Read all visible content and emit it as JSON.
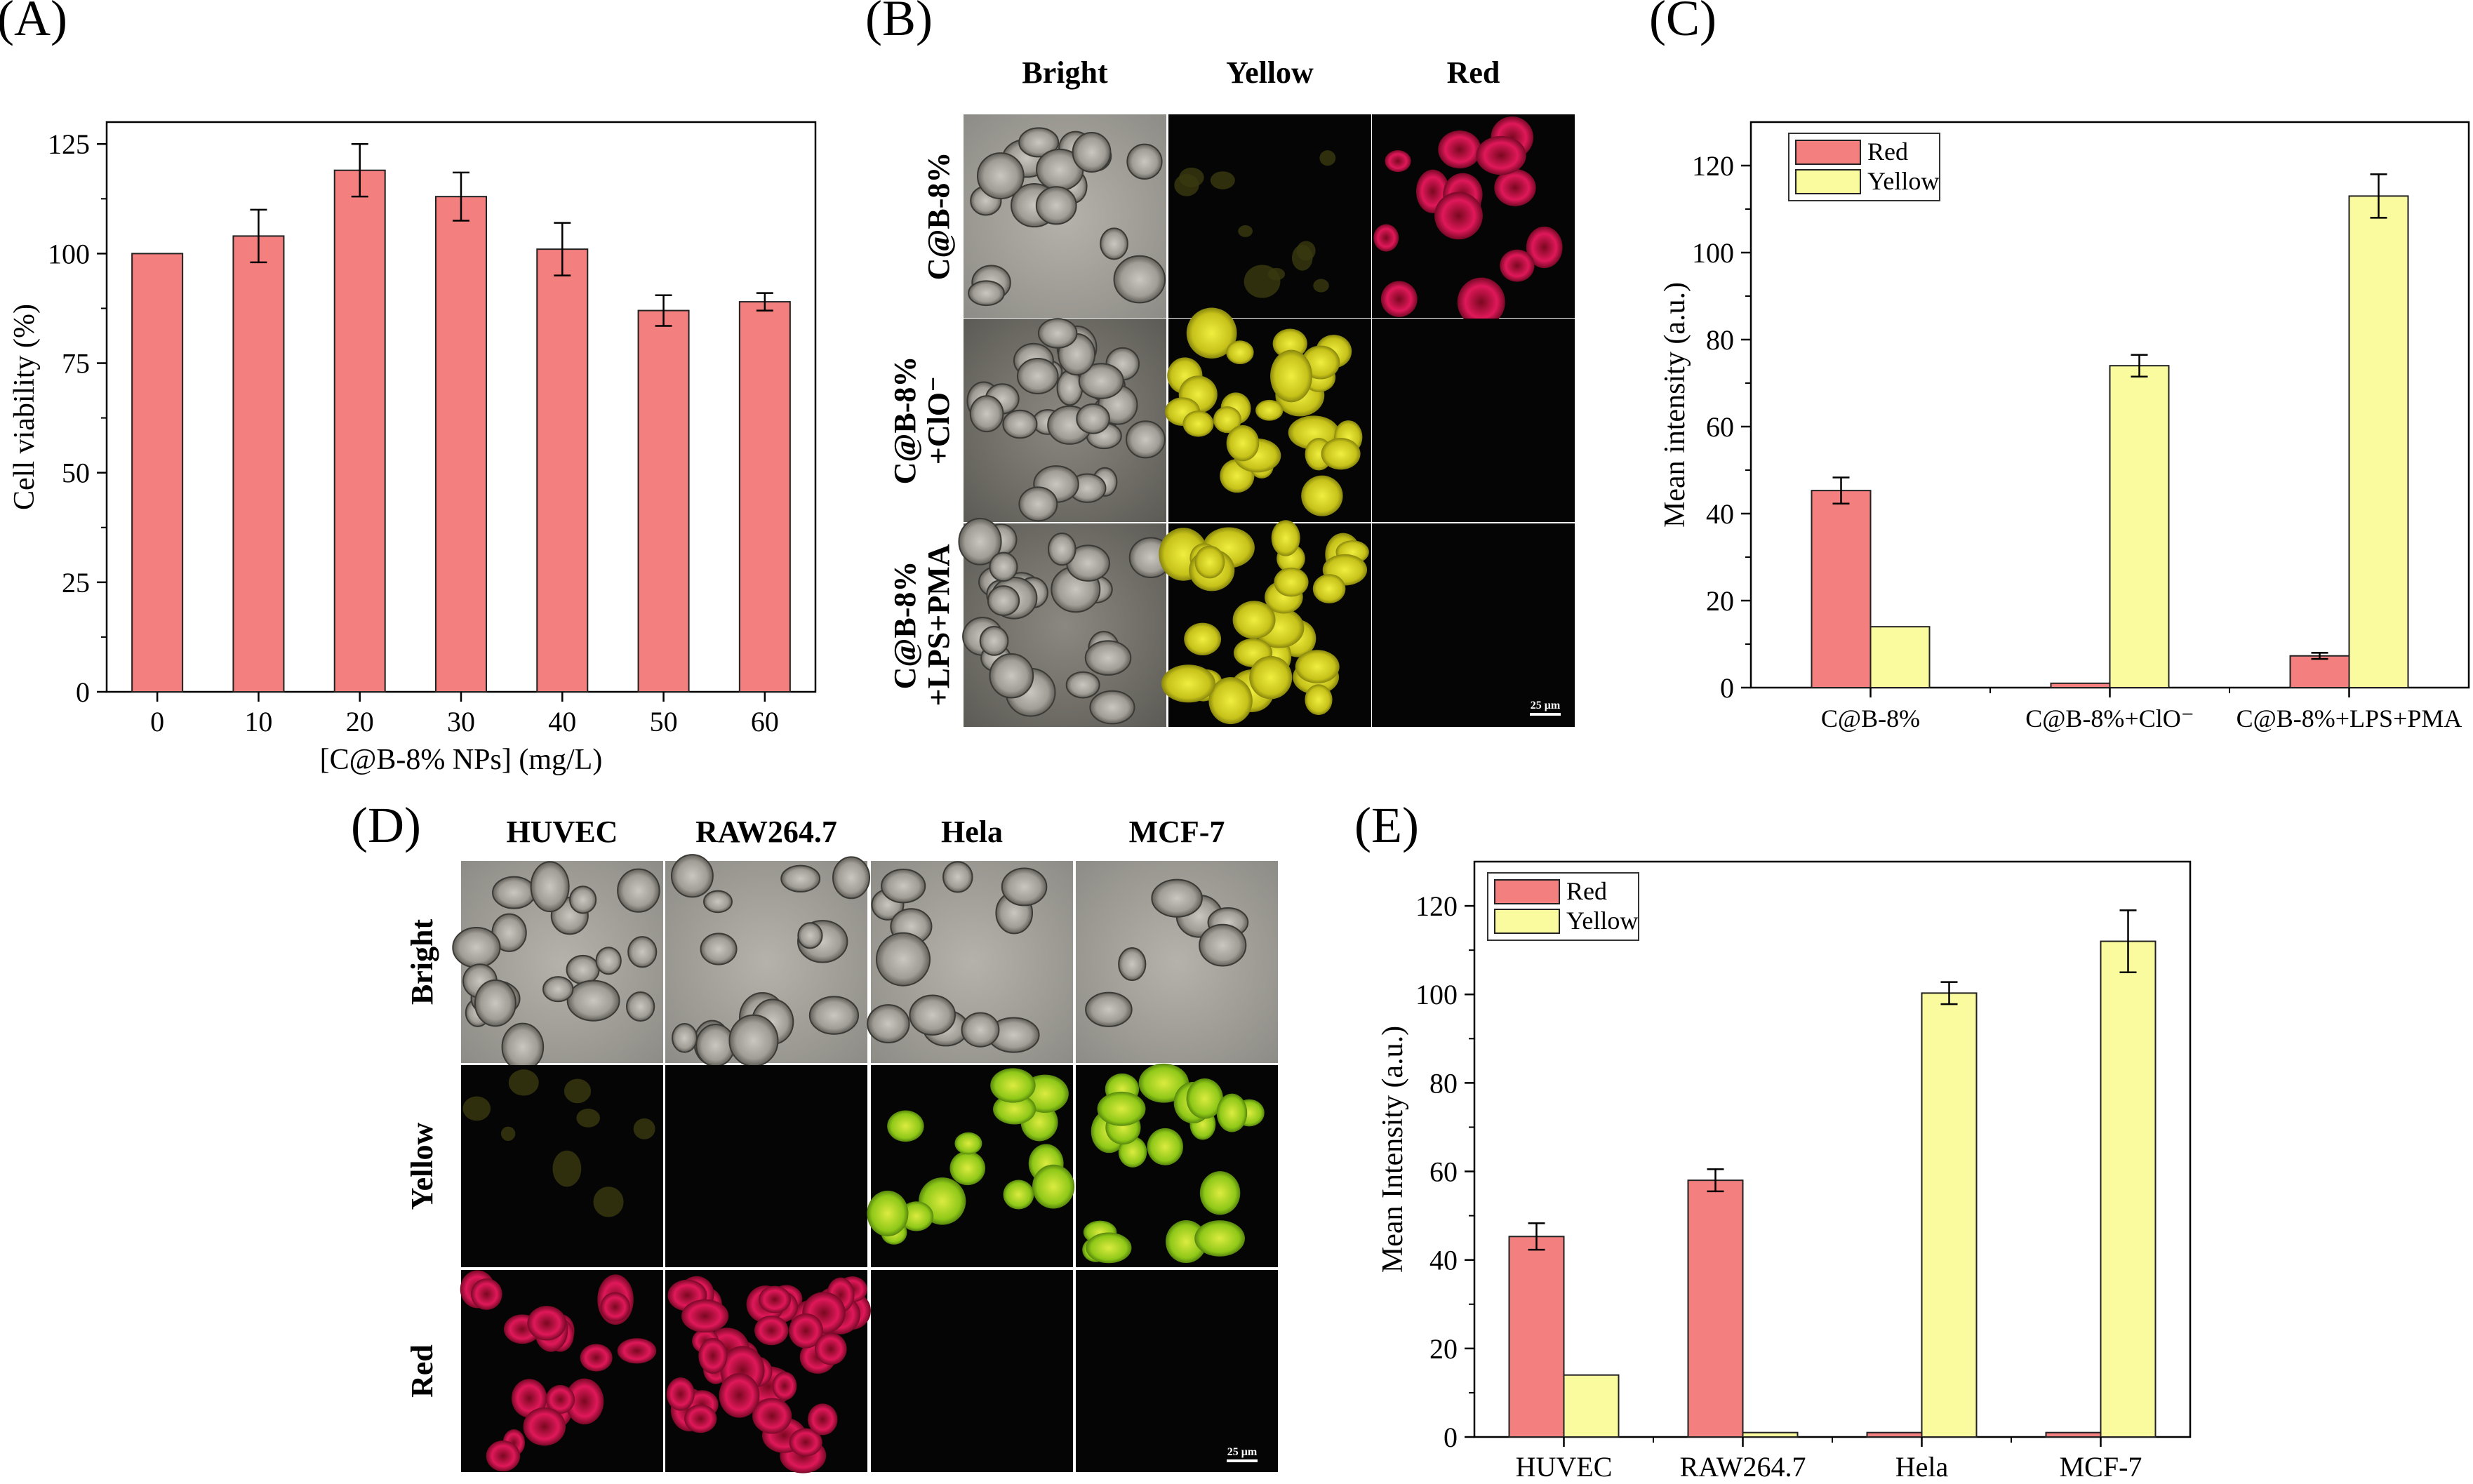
{
  "panels": {
    "A": "(A)",
    "B": "(B)",
    "C": "(C)",
    "D": "(D)",
    "E": "(E)"
  },
  "colors": {
    "red_bar": "#f47f7f",
    "yellow_bar": "#fafa9e",
    "bar_edge": "#222222"
  },
  "micro_B": {
    "col_headers": [
      "Bright",
      "Yellow",
      "Red"
    ],
    "row_headers": [
      [
        "C@B-8%"
      ],
      [
        "C@B-8%",
        "+ClO⁻"
      ],
      [
        "C@B-8%",
        "+LPS+PMA"
      ]
    ],
    "scale": "25 μm"
  },
  "micro_D": {
    "col_headers": [
      "HUVEC",
      "RAW264.7",
      "Hela",
      "MCF-7"
    ],
    "row_headers": [
      "Bright",
      "Yellow",
      "Red"
    ],
    "scale": "25 μm"
  },
  "chart_data": [
    {
      "id": "A",
      "type": "bar",
      "categories": [
        "0",
        "10",
        "20",
        "30",
        "40",
        "50",
        "60"
      ],
      "values": [
        100,
        104,
        119,
        113,
        101,
        87,
        89
      ],
      "errors": [
        0,
        6,
        6,
        5.5,
        6,
        3.5,
        2
      ],
      "title": "",
      "xlabel": "[C@B-8% NPs] (mg/L)",
      "ylabel": "Cell viability (%)",
      "ylim": [
        0,
        130
      ],
      "yticks": [
        0,
        25,
        50,
        75,
        100,
        125
      ],
      "grid": false
    },
    {
      "id": "C",
      "type": "bar",
      "categories": [
        "C@B-8%",
        "C@B-8%+ClO⁻",
        "C@B-8%+LPS+PMA"
      ],
      "series": [
        {
          "name": "Red",
          "values": [
            45.3,
            1,
            7.3
          ],
          "errors": [
            3,
            0,
            0.7
          ]
        },
        {
          "name": "Yellow",
          "values": [
            14,
            74,
            113
          ],
          "errors": [
            0,
            2.5,
            5
          ]
        }
      ],
      "xlabel": "",
      "ylabel": "Mean intensity (a.u.)",
      "ylim": [
        0,
        130
      ],
      "yticks": [
        0,
        20,
        40,
        60,
        80,
        100,
        120
      ],
      "legend": "top-left",
      "grid": false
    },
    {
      "id": "E",
      "type": "bar",
      "categories": [
        "HUVEC",
        "RAW264.7",
        "Hela",
        "MCF-7"
      ],
      "series": [
        {
          "name": "Red",
          "values": [
            45.3,
            58,
            1,
            1
          ],
          "errors": [
            3,
            2.5,
            0,
            0
          ]
        },
        {
          "name": "Yellow",
          "values": [
            14,
            1,
            100.3,
            112
          ],
          "errors": [
            0,
            0,
            2.5,
            7
          ]
        }
      ],
      "xlabel": "",
      "ylabel": "Mean Intensity (a.u.)",
      "ylim": [
        0,
        130
      ],
      "yticks": [
        0,
        20,
        40,
        60,
        80,
        100,
        120
      ],
      "legend": "top-left",
      "grid": false
    }
  ]
}
